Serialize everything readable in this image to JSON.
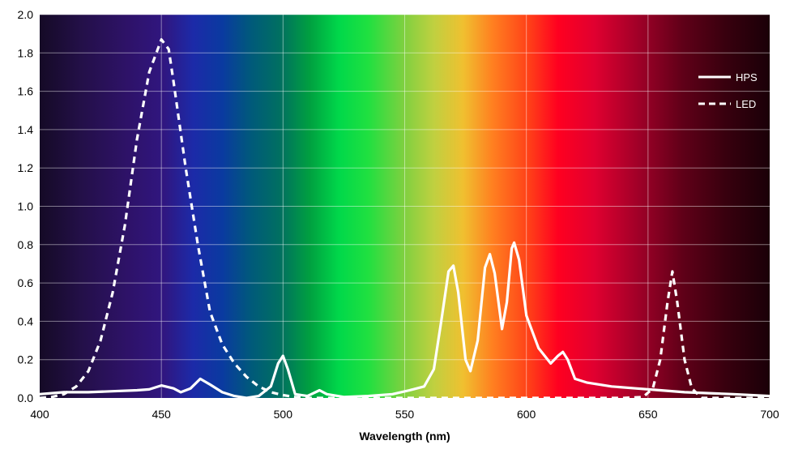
{
  "chart_data": {
    "type": "line",
    "title": "",
    "xlabel": "Wavelength (nm)",
    "ylabel": "",
    "xlim": [
      400,
      700
    ],
    "ylim": [
      0,
      2.0
    ],
    "x_ticks": [
      400,
      450,
      500,
      550,
      600,
      650,
      700
    ],
    "x_tick_labels": [
      "400",
      "450",
      "500",
      "550",
      "600",
      "650",
      "700"
    ],
    "y_ticks": [
      0,
      0.2,
      0.4,
      0.6,
      0.8,
      1.0,
      1.2,
      1.4,
      1.6,
      1.8,
      2.0
    ],
    "y_tick_labels": [
      "0.0",
      "0.2",
      "0.4",
      "0.6",
      "0.8",
      "1.0",
      "1.2",
      "1.4",
      "1.6",
      "1.8",
      "2.0"
    ],
    "grid": true,
    "legend_position": "top-right",
    "background": "visible-spectrum-gradient",
    "series": [
      {
        "name": "HPS",
        "style": "solid",
        "color": "#ffffff",
        "points": [
          [
            400,
            0.02
          ],
          [
            410,
            0.03
          ],
          [
            420,
            0.03
          ],
          [
            430,
            0.035
          ],
          [
            440,
            0.04
          ],
          [
            445,
            0.045
          ],
          [
            450,
            0.065
          ],
          [
            455,
            0.05
          ],
          [
            458,
            0.03
          ],
          [
            462,
            0.05
          ],
          [
            466,
            0.1
          ],
          [
            470,
            0.07
          ],
          [
            475,
            0.03
          ],
          [
            480,
            0.01
          ],
          [
            485,
            0.0
          ],
          [
            490,
            0.01
          ],
          [
            495,
            0.06
          ],
          [
            498,
            0.18
          ],
          [
            500,
            0.22
          ],
          [
            502,
            0.15
          ],
          [
            505,
            0.02
          ],
          [
            510,
            0.01
          ],
          [
            515,
            0.04
          ],
          [
            518,
            0.02
          ],
          [
            525,
            0.005
          ],
          [
            535,
            0.01
          ],
          [
            545,
            0.02
          ],
          [
            552,
            0.04
          ],
          [
            558,
            0.06
          ],
          [
            562,
            0.15
          ],
          [
            565,
            0.4
          ],
          [
            568,
            0.66
          ],
          [
            570,
            0.69
          ],
          [
            572,
            0.55
          ],
          [
            575,
            0.2
          ],
          [
            577,
            0.14
          ],
          [
            580,
            0.3
          ],
          [
            583,
            0.68
          ],
          [
            585,
            0.75
          ],
          [
            587,
            0.65
          ],
          [
            590,
            0.36
          ],
          [
            592,
            0.5
          ],
          [
            594,
            0.78
          ],
          [
            595,
            0.81
          ],
          [
            597,
            0.72
          ],
          [
            600,
            0.43
          ],
          [
            605,
            0.26
          ],
          [
            610,
            0.18
          ],
          [
            613,
            0.22
          ],
          [
            615,
            0.24
          ],
          [
            617,
            0.2
          ],
          [
            620,
            0.1
          ],
          [
            625,
            0.08
          ],
          [
            635,
            0.06
          ],
          [
            645,
            0.05
          ],
          [
            655,
            0.04
          ],
          [
            665,
            0.03
          ],
          [
            675,
            0.025
          ],
          [
            685,
            0.02
          ],
          [
            700,
            0.01
          ]
        ]
      },
      {
        "name": "LED",
        "style": "dashed",
        "color": "#ffffff",
        "points": [
          [
            400,
            0.0
          ],
          [
            405,
            0.005
          ],
          [
            410,
            0.02
          ],
          [
            415,
            0.06
          ],
          [
            420,
            0.14
          ],
          [
            425,
            0.3
          ],
          [
            430,
            0.55
          ],
          [
            435,
            0.9
          ],
          [
            440,
            1.35
          ],
          [
            445,
            1.7
          ],
          [
            450,
            1.87
          ],
          [
            453,
            1.82
          ],
          [
            455,
            1.65
          ],
          [
            460,
            1.2
          ],
          [
            465,
            0.8
          ],
          [
            470,
            0.45
          ],
          [
            475,
            0.28
          ],
          [
            480,
            0.18
          ],
          [
            485,
            0.11
          ],
          [
            490,
            0.06
          ],
          [
            495,
            0.03
          ],
          [
            500,
            0.015
          ],
          [
            505,
            0.005
          ],
          [
            510,
            0.0
          ],
          [
            640,
            0.0
          ],
          [
            648,
            0.005
          ],
          [
            652,
            0.05
          ],
          [
            655,
            0.2
          ],
          [
            658,
            0.5
          ],
          [
            660,
            0.66
          ],
          [
            662,
            0.5
          ],
          [
            665,
            0.2
          ],
          [
            668,
            0.05
          ],
          [
            672,
            0.0
          ],
          [
            700,
            0.0
          ]
        ]
      }
    ]
  }
}
